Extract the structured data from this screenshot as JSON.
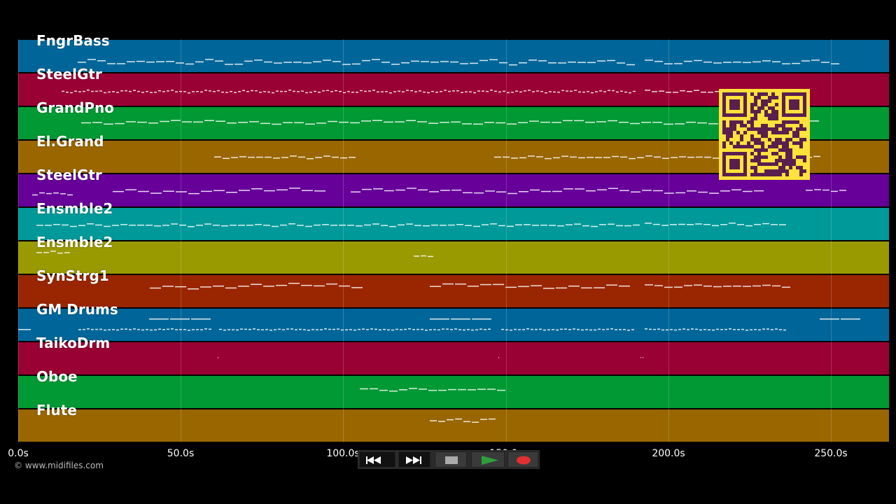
{
  "tracks": [
    {
      "name": "FngrBass",
      "color": "#006699"
    },
    {
      "name": "SteelGtr",
      "color": "#990033"
    },
    {
      "name": "GrandPno",
      "color": "#009933"
    },
    {
      "name": "El.Grand",
      "color": "#996600"
    },
    {
      "name": "SteelGtr",
      "color": "#660099"
    },
    {
      "name": "Ensmble2",
      "color": "#009999"
    },
    {
      "name": "Ensmble2",
      "color": "#999900"
    },
    {
      "name": "SynStrg1",
      "color": "#992600"
    },
    {
      "name": "GM Drums",
      "color": "#006699"
    },
    {
      "name": "TaikoDrm",
      "color": "#990033"
    },
    {
      "name": "Oboe",
      "color": "#009933"
    },
    {
      "name": "Flute",
      "color": "#996600"
    }
  ],
  "timeline": {
    "ticks": [
      "0.0s",
      "50.0s",
      "100.0s",
      "150.0s",
      "200.0s",
      "250.0s"
    ]
  },
  "copyright": "© www.midifiles.com",
  "transport": {
    "rewind": "rewind-icon",
    "fast_forward": "fast-forward-icon",
    "stop": "stop-icon",
    "play": "play-icon",
    "record": "record-icon",
    "play_color": "#2e9e3a",
    "record_color": "#e03030"
  },
  "qr_color": "#5a1f4f"
}
